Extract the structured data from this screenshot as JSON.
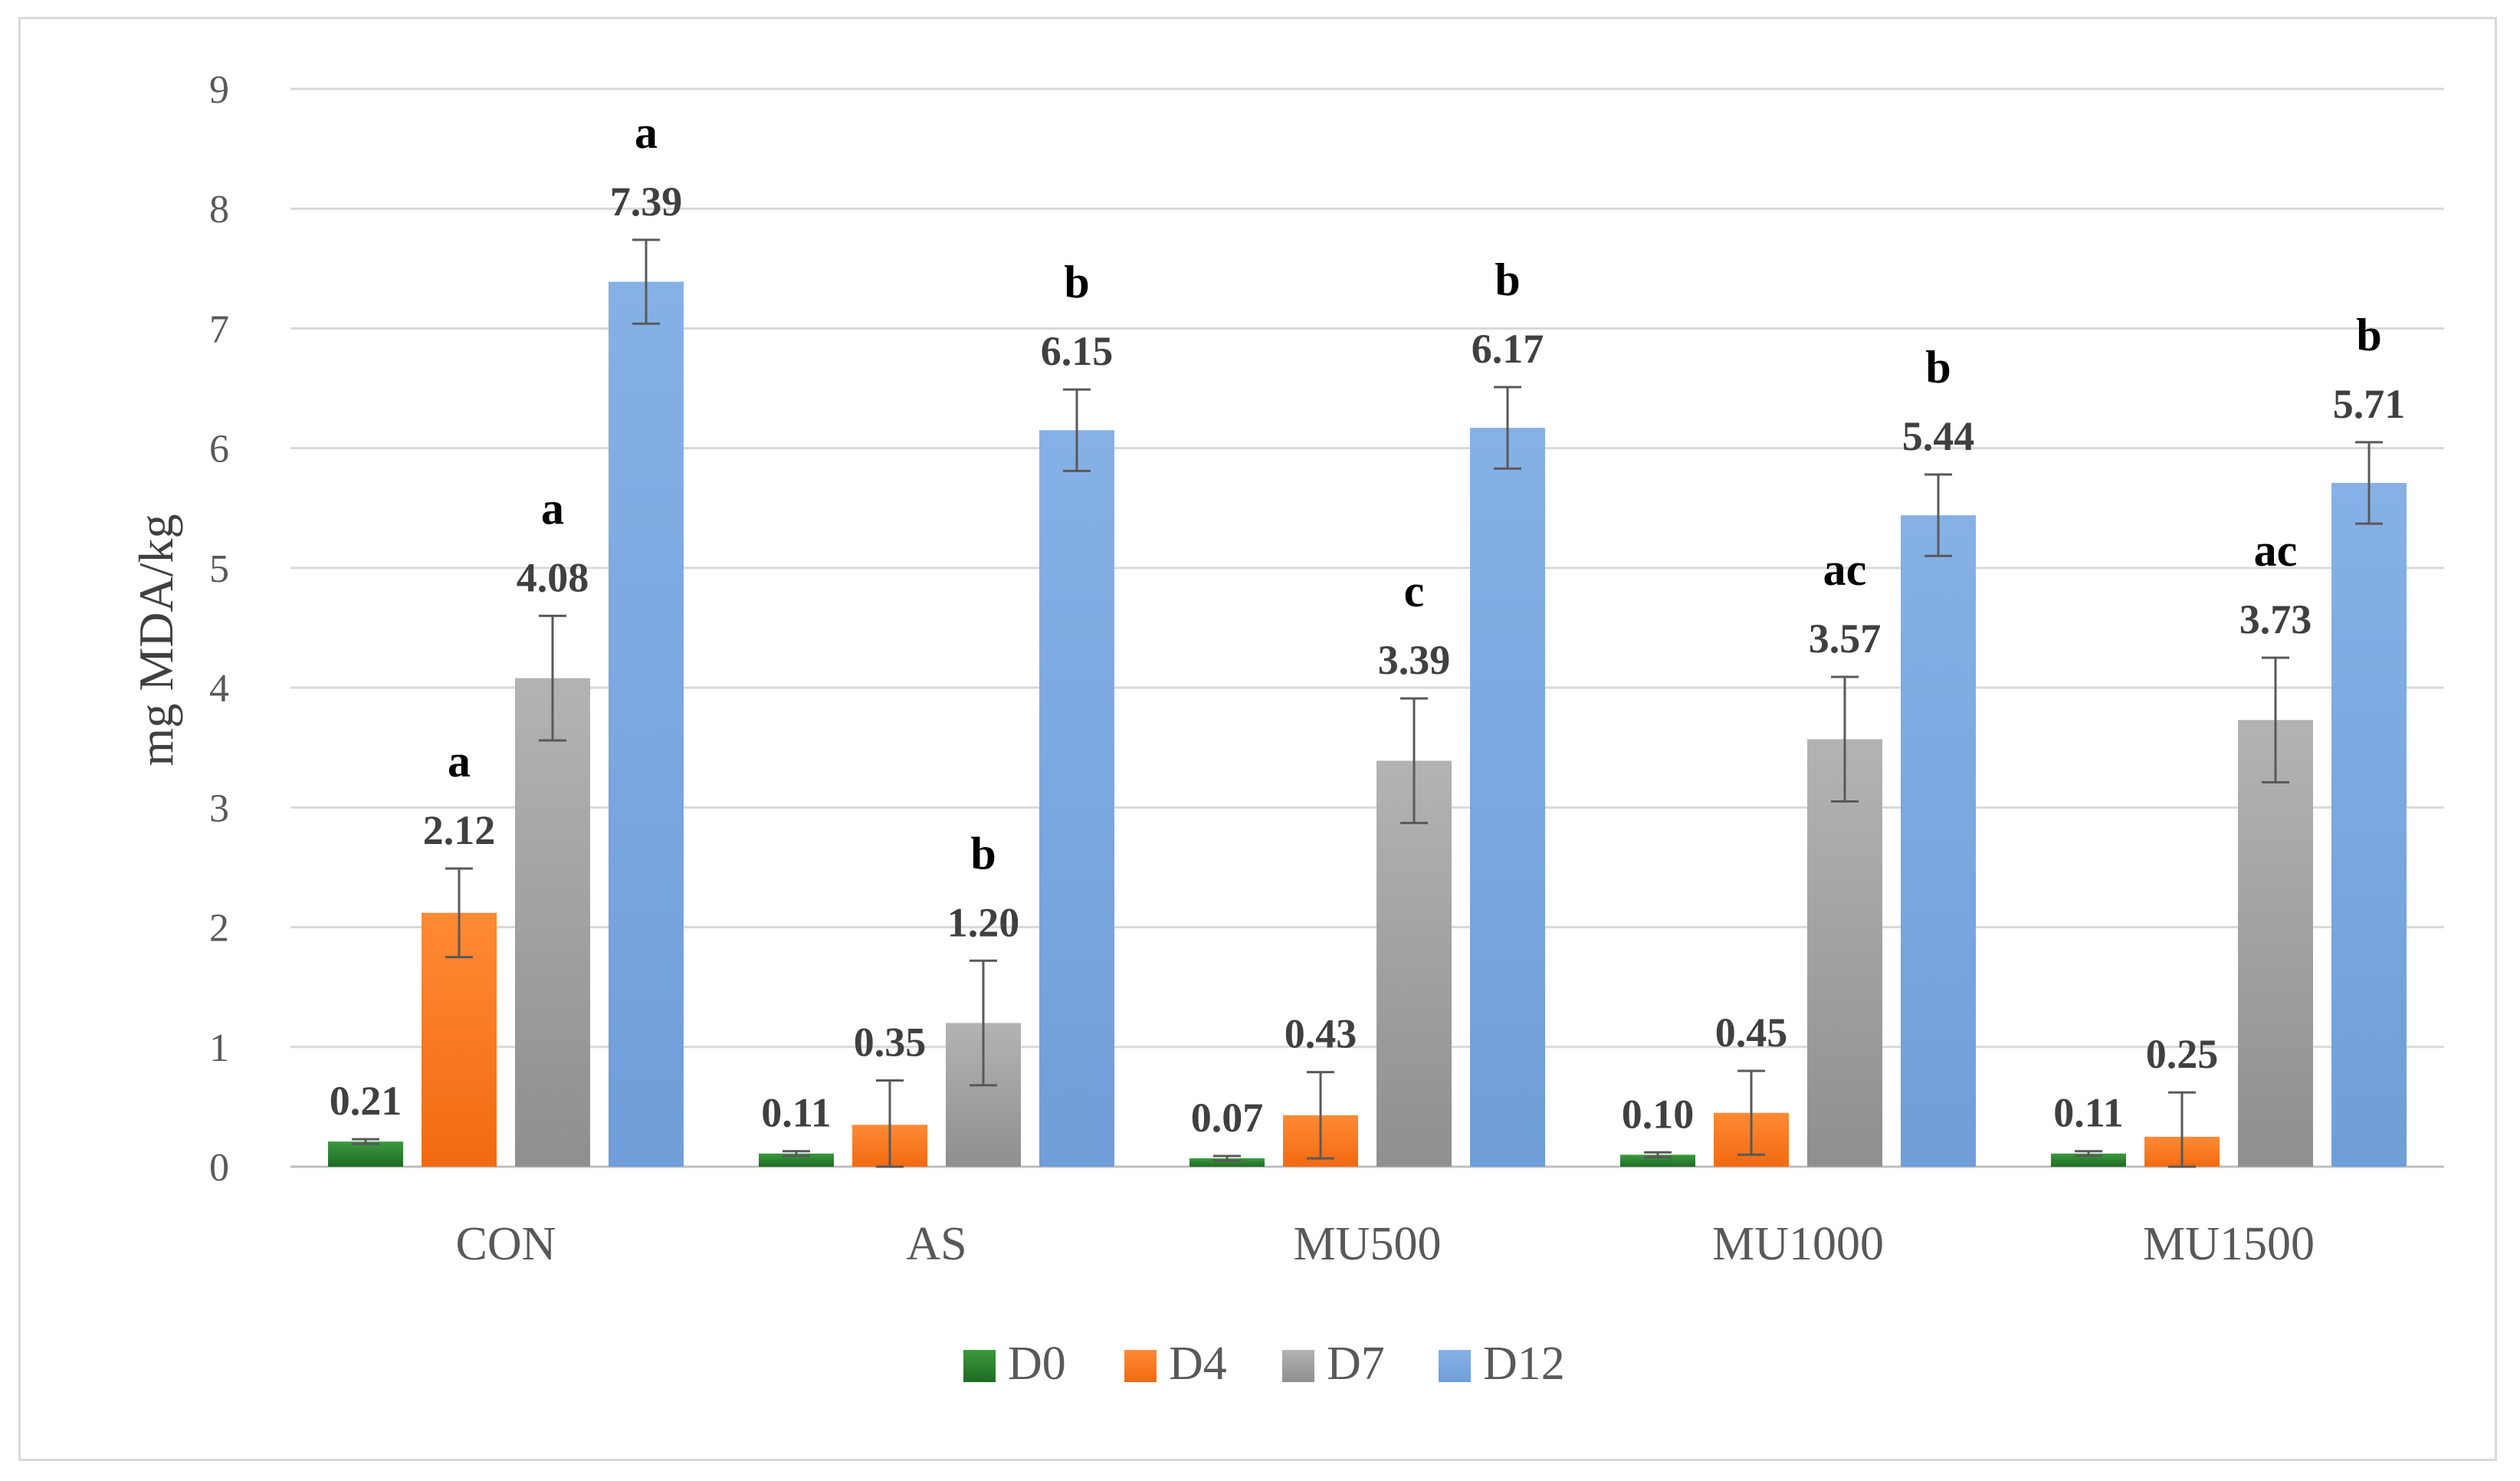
{
  "chart_data": {
    "type": "bar",
    "title": "",
    "xlabel": "",
    "ylabel": "mg MDA/kg",
    "ylim": [
      0,
      9
    ],
    "yticks": [
      "0",
      "1",
      "2",
      "3",
      "4",
      "5",
      "6",
      "7",
      "8",
      "9"
    ],
    "grid": true,
    "legend_position": "bottom",
    "categories": [
      "CON",
      "AS",
      "MU500",
      "MU1000",
      "MU1500"
    ],
    "series": [
      {
        "name": "D0",
        "color": "#2e7d32",
        "values": [
          0.21,
          0.11,
          0.07,
          0.1,
          0.11
        ],
        "labels": [
          "0.21",
          "0.11",
          "0.07",
          "0.10",
          "0.11"
        ],
        "errors": [
          0.02,
          0.02,
          0.02,
          0.02,
          0.02
        ],
        "significance": [
          "",
          "",
          "",
          "",
          ""
        ]
      },
      {
        "name": "D4",
        "color": "#f47b20",
        "values": [
          2.12,
          0.35,
          0.43,
          0.45,
          0.25
        ],
        "labels": [
          "2.12",
          "0.35",
          "0.43",
          "0.45",
          "0.25"
        ],
        "errors": [
          0.37,
          0.37,
          0.36,
          0.35,
          0.37
        ],
        "significance": [
          "a",
          "",
          "",
          "",
          ""
        ]
      },
      {
        "name": "D7",
        "color": "#a6a6a6",
        "values": [
          4.08,
          1.2,
          3.39,
          3.57,
          3.73
        ],
        "labels": [
          "4.08",
          "1.20",
          "3.39",
          "3.57",
          "3.73"
        ],
        "errors": [
          0.52,
          0.52,
          0.52,
          0.52,
          0.52
        ],
        "significance": [
          "a",
          "b",
          "c",
          "ac",
          "ac"
        ]
      },
      {
        "name": "D12",
        "color": "#7eaadf",
        "values": [
          7.39,
          6.15,
          6.17,
          5.44,
          5.71
        ],
        "labels": [
          "7.39",
          "6.15",
          "6.17",
          "5.44",
          "5.71"
        ],
        "errors": [
          0.35,
          0.34,
          0.34,
          0.34,
          0.34
        ],
        "significance": [
          "a",
          "b",
          "b",
          "b",
          "b"
        ]
      }
    ]
  }
}
